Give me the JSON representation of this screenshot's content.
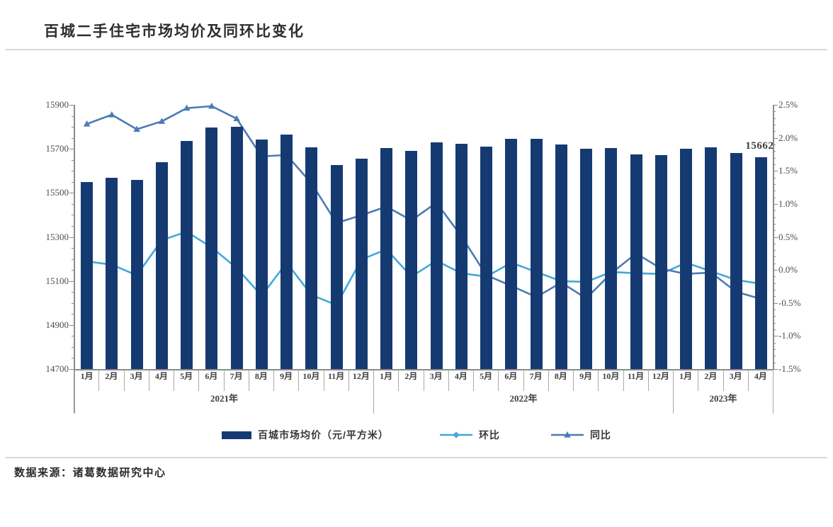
{
  "page": {
    "title": "百城二手住宅市场均价及同环比变化",
    "source_note": "数据来源：诸葛数据研究中心"
  },
  "chart_data": {
    "type": "bar",
    "subtype": "combo-bar-line-dual-axis",
    "title": "百城二手住宅市场均价及同环比变化",
    "categories_months": [
      "1月",
      "2月",
      "3月",
      "4月",
      "5月",
      "6月",
      "7月",
      "8月",
      "9月",
      "10月",
      "11月",
      "12月",
      "1月",
      "2月",
      "3月",
      "4月",
      "5月",
      "6月",
      "7月",
      "8月",
      "9月",
      "10月",
      "11月",
      "12月",
      "1月",
      "2月",
      "3月",
      "4月"
    ],
    "category_years": [
      {
        "label": "2021年",
        "span": 12
      },
      {
        "label": "2022年",
        "span": 12
      },
      {
        "label": "2023年",
        "span": 4
      }
    ],
    "left_axis": {
      "min": 14700,
      "max": 15900,
      "major_step": 200,
      "minor_step": 50,
      "tick_labels": [
        "15900",
        "15700",
        "15500",
        "15300",
        "15100",
        "14900",
        "14700"
      ]
    },
    "right_axis": {
      "min": -1.5,
      "max": 2.5,
      "major_step": 0.5,
      "minor_step": 0.1,
      "tick_labels": [
        "2.5%",
        "2.0%",
        "1.5%",
        "1.0%",
        "0.5%",
        "0.0%",
        "-0.5%",
        "-1.0%",
        "-1.5%"
      ]
    },
    "series": [
      {
        "name": "百城市场均价（元/平方米）",
        "type": "bar",
        "axis": "left",
        "color": "#153a72",
        "values": [
          15550,
          15568,
          15560,
          15641,
          15737,
          15796,
          15800,
          15741,
          15766,
          15706,
          15628,
          15655,
          15704,
          15690,
          15731,
          15722,
          15710,
          15747,
          15746,
          15721,
          15701,
          15704,
          15674,
          15671,
          15700,
          15706,
          15681,
          15662
        ]
      },
      {
        "name": "环比",
        "type": "line",
        "marker": "diamond",
        "axis": "right",
        "color": "#41a8dc",
        "values": [
          0.13,
          0.08,
          -0.08,
          0.45,
          0.58,
          0.34,
          0.03,
          -0.39,
          0.11,
          -0.38,
          -0.53,
          0.16,
          0.31,
          -0.1,
          0.14,
          -0.05,
          -0.1,
          0.11,
          -0.03,
          -0.17,
          -0.18,
          -0.03,
          -0.05,
          -0.06,
          0.11,
          -0.02,
          -0.15,
          -0.21
        ]
      },
      {
        "name": "同比",
        "type": "line",
        "marker": "triangle",
        "axis": "right",
        "color": "#4c7bb4",
        "values": [
          2.21,
          2.35,
          2.13,
          2.25,
          2.45,
          2.48,
          2.29,
          1.72,
          1.74,
          1.31,
          0.71,
          0.83,
          0.96,
          0.75,
          1.02,
          0.51,
          -0.08,
          -0.24,
          -0.41,
          -0.19,
          -0.43,
          -0.05,
          0.25,
          0.02,
          -0.06,
          -0.04,
          -0.33,
          -0.44
        ]
      }
    ],
    "annotation": {
      "text": "15662",
      "series_index": 0,
      "point_index": 27
    },
    "legend_position": "bottom-center",
    "grid": "off"
  },
  "colors": {
    "axis_line": "#8a8a8a",
    "separator": "#a8a8a8",
    "tick_text": "#4d4d4d",
    "divider": "#d9d9d9",
    "title_text": "#2e2e2e"
  }
}
